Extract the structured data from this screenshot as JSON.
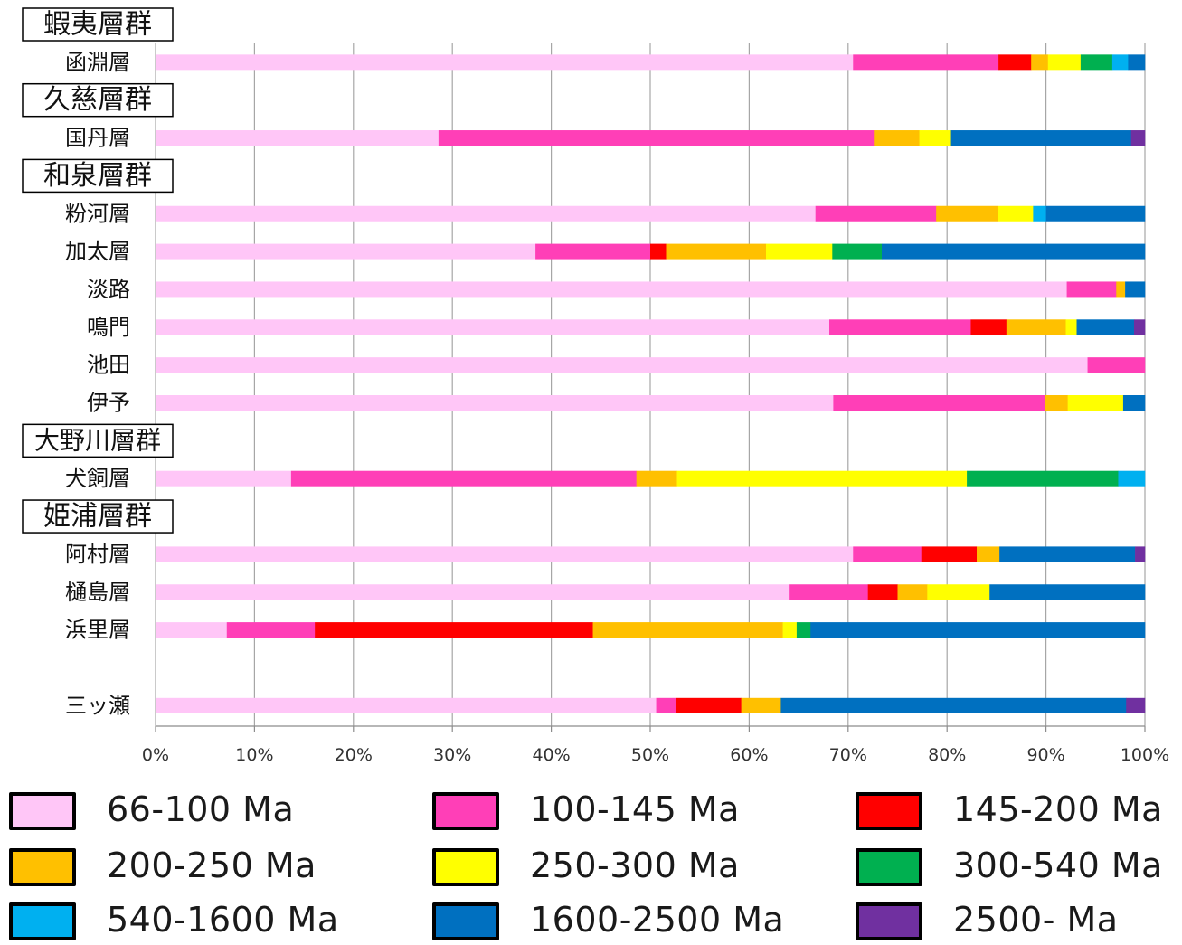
{
  "colors": {
    "66-100": "#ffc6f7",
    "100-145": "#ff3fb7",
    "145-200": "#ff0000",
    "200-250": "#ffc000",
    "250-300": "#ffff00",
    "300-540": "#00b050",
    "540-1600": "#00b0f0",
    "1600-2500": "#0070c0",
    "2500-": "#7030a0"
  },
  "legend": [
    {
      "key": "66-100",
      "label": "66-100 Ma",
      "color": "#ffc6f7"
    },
    {
      "key": "100-145",
      "label": "100-145 Ma",
      "color": "#ff3fb7"
    },
    {
      "key": "145-200",
      "label": "145-200 Ma",
      "color": "#ff0000"
    },
    {
      "key": "200-250",
      "label": "200-250 Ma",
      "color": "#ffc000"
    },
    {
      "key": "250-300",
      "label": "250-300 Ma",
      "color": "#ffff00"
    },
    {
      "key": "300-540",
      "label": "300-540 Ma",
      "color": "#00b050"
    },
    {
      "key": "540-1600",
      "label": "540-1600 Ma",
      "color": "#00b0f0"
    },
    {
      "key": "1600-2500",
      "label": "1600-2500 Ma",
      "color": "#0070c0"
    },
    {
      "key": "2500-",
      "label": "2500- Ma",
      "color": "#7030a0"
    }
  ],
  "chart_data": {
    "type": "bar",
    "orientation": "horizontal",
    "stacked": "percent",
    "xlim": [
      0,
      100
    ],
    "x_ticks": [
      "0%",
      "10%",
      "20%",
      "30%",
      "40%",
      "50%",
      "60%",
      "70%",
      "80%",
      "90%",
      "100%"
    ],
    "grid": true,
    "legend_position": "bottom",
    "group_headers": [
      "蝦夷層群",
      "久慈層群",
      "和泉層群",
      "大野川層群",
      "姫浦層群"
    ],
    "series_keys": [
      "66-100",
      "100-145",
      "145-200",
      "200-250",
      "250-300",
      "300-540",
      "540-1600",
      "1600-2500",
      "2500-"
    ],
    "rows": [
      {
        "kind": "header",
        "label": "蝦夷層群"
      },
      {
        "kind": "bar",
        "label": "函淵層",
        "values": [
          70.5,
          14.7,
          3.3,
          1.7,
          3.3,
          3.2,
          1.6,
          1.7,
          0
        ]
      },
      {
        "kind": "header",
        "label": "久慈層群"
      },
      {
        "kind": "bar",
        "label": "国丹層",
        "values": [
          28.6,
          44,
          0,
          4.6,
          3.2,
          0,
          0,
          18.2,
          1.4
        ]
      },
      {
        "kind": "header",
        "label": "和泉層群"
      },
      {
        "kind": "bar",
        "label": "粉河層",
        "values": [
          66.7,
          12.2,
          0,
          6.2,
          3.6,
          0,
          1.3,
          10,
          0
        ]
      },
      {
        "kind": "bar",
        "label": "加太層",
        "values": [
          38.4,
          11.6,
          1.6,
          10.1,
          6.7,
          5,
          0,
          26.6,
          0
        ]
      },
      {
        "kind": "bar",
        "label": "淡路",
        "values": [
          92.1,
          5,
          0,
          0.9,
          0,
          0,
          0,
          2,
          0
        ]
      },
      {
        "kind": "bar",
        "label": "鳴門",
        "values": [
          68.1,
          14.3,
          3.6,
          6,
          1.1,
          0,
          0,
          5.8,
          1.1
        ]
      },
      {
        "kind": "bar",
        "label": "池田",
        "values": [
          94.2,
          5.8,
          0,
          0,
          0,
          0,
          0,
          0,
          0
        ]
      },
      {
        "kind": "bar",
        "label": "伊予",
        "values": [
          68.5,
          21.4,
          0,
          2.3,
          5.6,
          0,
          0,
          2.2,
          0
        ]
      },
      {
        "kind": "header",
        "label": "大野川層群"
      },
      {
        "kind": "bar",
        "label": "犬飼層",
        "values": [
          13.7,
          34.9,
          0,
          4.1,
          29.3,
          15.3,
          2.7,
          0,
          0
        ]
      },
      {
        "kind": "header",
        "label": "姫浦層群"
      },
      {
        "kind": "bar",
        "label": "阿村層",
        "values": [
          70.5,
          6.9,
          5.6,
          2.3,
          0,
          0,
          0,
          13.7,
          1
        ]
      },
      {
        "kind": "bar",
        "label": "樋島層",
        "values": [
          64,
          8,
          3,
          3,
          6.3,
          0,
          0,
          15.7,
          0
        ]
      },
      {
        "kind": "bar",
        "label": "浜里層",
        "values": [
          7.2,
          8.9,
          28.1,
          19.2,
          1.4,
          1.4,
          0,
          33.8,
          0
        ]
      },
      {
        "kind": "spacer",
        "label": ""
      },
      {
        "kind": "bar",
        "label": "三ッ瀬",
        "values": [
          50.6,
          2,
          6.6,
          4,
          0,
          0,
          0,
          34.9,
          1.9
        ]
      }
    ]
  }
}
